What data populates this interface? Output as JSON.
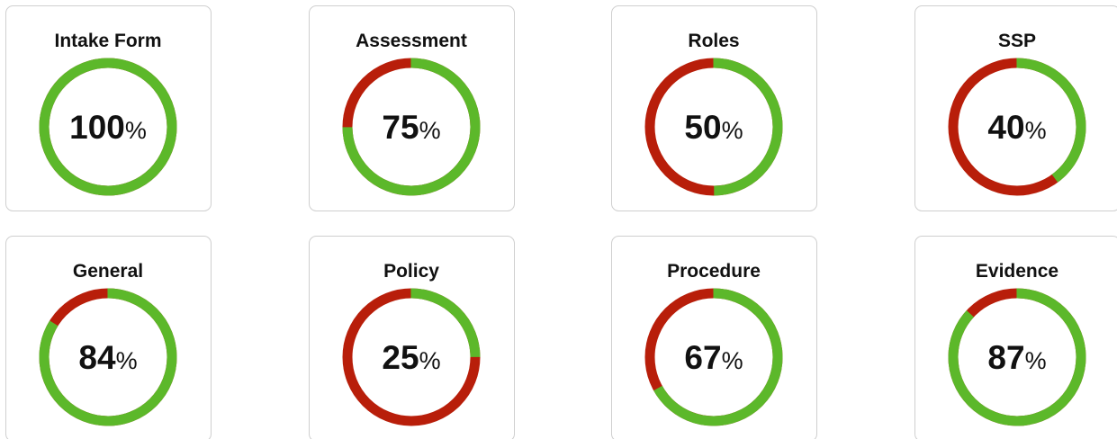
{
  "unit": "%",
  "cards": [
    {
      "title": "Intake Form",
      "value": 100
    },
    {
      "title": "Assessment",
      "value": 75
    },
    {
      "title": "Roles",
      "value": 50
    },
    {
      "title": "SSP",
      "value": 40
    },
    {
      "title": "General",
      "value": 84
    },
    {
      "title": "Policy",
      "value": 25
    },
    {
      "title": "Procedure",
      "value": 67
    },
    {
      "title": "Evidence",
      "value": 87
    }
  ]
}
